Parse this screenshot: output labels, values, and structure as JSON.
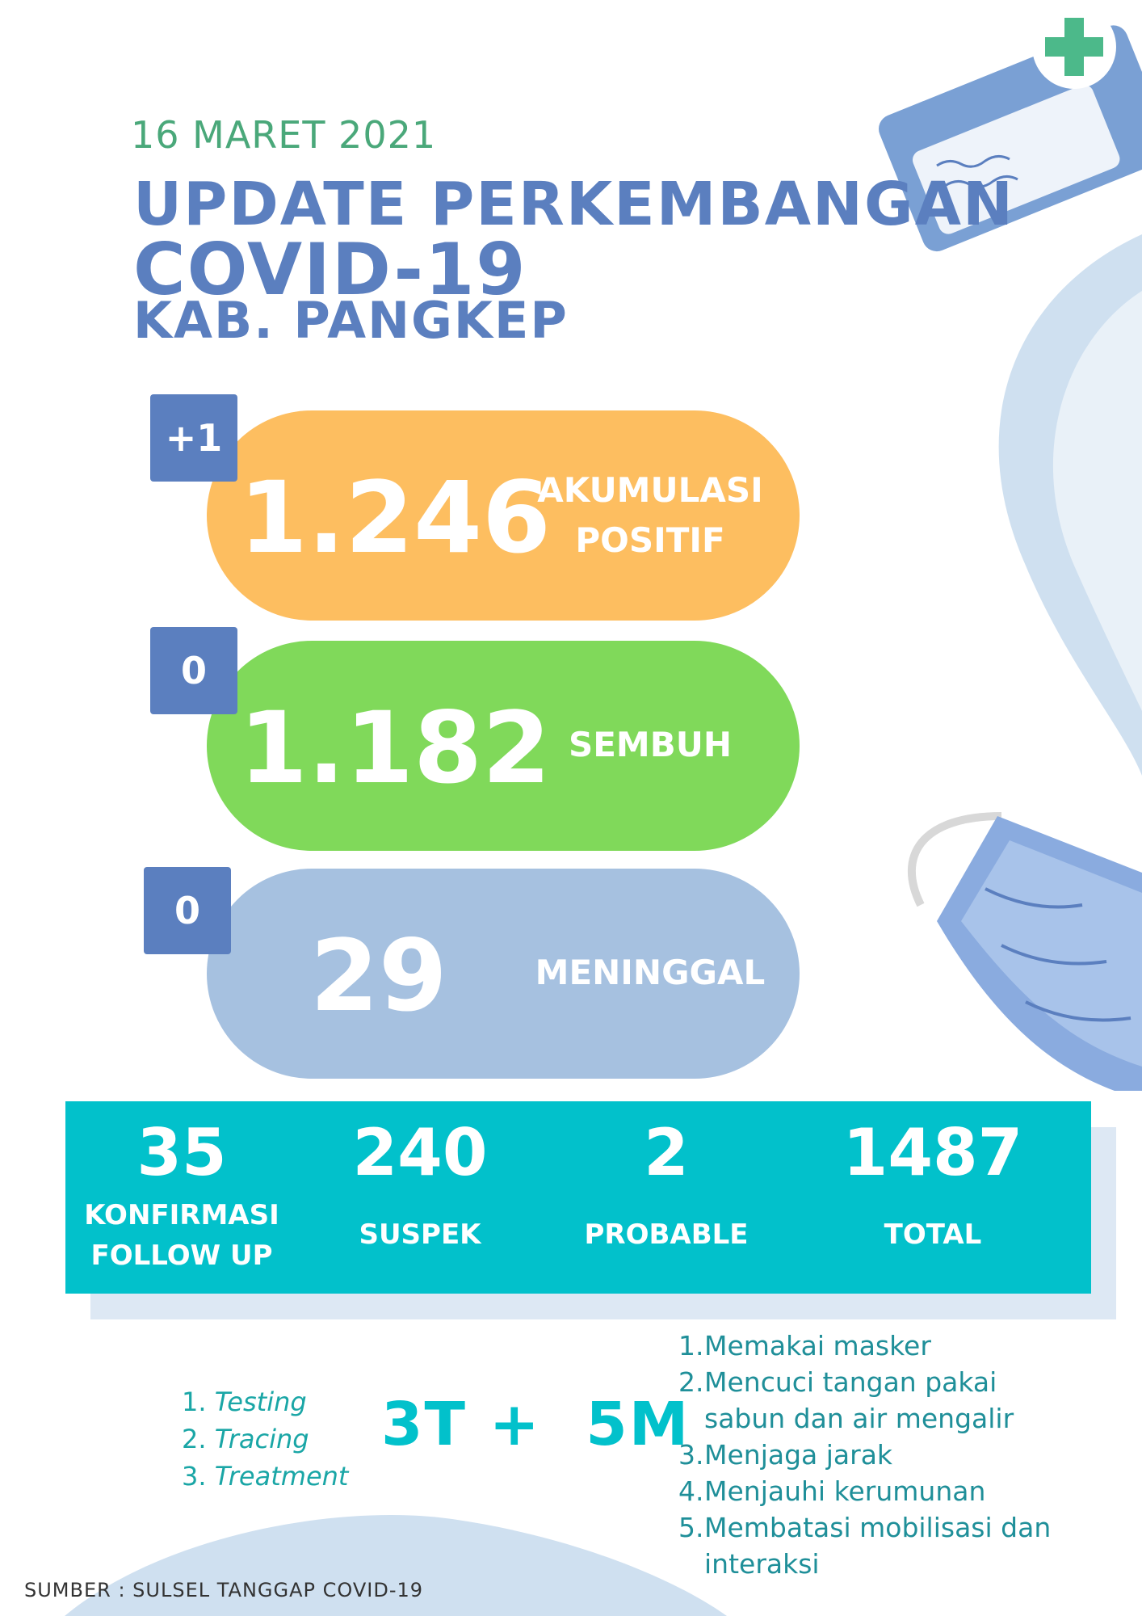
{
  "header": {
    "date": "16 MARET 2021",
    "title_line1": "UPDATE PERKEMBANGAN",
    "title_line2": "COVID-19",
    "title_line3": "KAB. PANGKEP"
  },
  "cases": [
    {
      "delta": "+1",
      "value": "1.246",
      "label_line1": "AKUMULASI",
      "label_line2": "POSITIF",
      "color": "#fdbe60"
    },
    {
      "delta": "0",
      "value": "1.182",
      "label_line1": "SEMBUH",
      "label_line2": "",
      "color": "#80d95a"
    },
    {
      "delta": "0",
      "value": "29",
      "label_line1": "MENINGGAL",
      "label_line2": "",
      "color": "#a6c1e0"
    }
  ],
  "stats": [
    {
      "value": "35",
      "label_line1": "KONFIRMASI",
      "label_line2": "FOLLOW UP"
    },
    {
      "value": "240",
      "label_line1": "SUSPEK",
      "label_line2": ""
    },
    {
      "value": "2",
      "label_line1": "PROBABLE",
      "label_line2": ""
    },
    {
      "value": "1487",
      "label_line1": "TOTAL",
      "label_line2": ""
    }
  ],
  "three_t": {
    "heading": "3T +  5M",
    "items": [
      "Testing",
      "Tracing",
      "Treatment"
    ]
  },
  "five_m": {
    "items": [
      "Memakai masker",
      "Mencuci tangan pakai sabun dan air mengalir",
      "Menjaga jarak",
      "Menjauhi kerumunan",
      "Membatasi mobilisasi dan interaksi"
    ]
  },
  "source": "SUMBER : SULSEL TANGGAP COVID-19",
  "colors": {
    "accent_blue": "#5b7fbf",
    "teal": "#02c1cb",
    "date_green": "#4aa87a"
  },
  "icons": [
    "first-aid-kit-icon",
    "face-mask-icon"
  ]
}
